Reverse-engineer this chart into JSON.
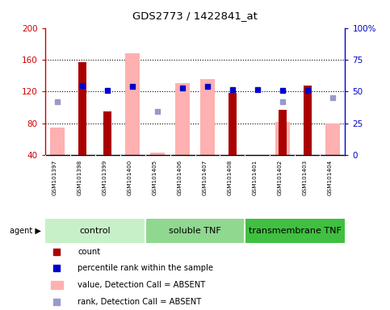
{
  "title": "GDS2773 / 1422841_at",
  "samples": [
    "GSM101397",
    "GSM101398",
    "GSM101399",
    "GSM101400",
    "GSM101405",
    "GSM101406",
    "GSM101407",
    "GSM101408",
    "GSM101401",
    "GSM101402",
    "GSM101403",
    "GSM101404"
  ],
  "group_defs": [
    {
      "start": 0,
      "end": 3,
      "label": "control",
      "color": "#c8f0c8"
    },
    {
      "start": 4,
      "end": 7,
      "label": "soluble TNF",
      "color": "#90d890"
    },
    {
      "start": 8,
      "end": 11,
      "label": "transmembrane TNF",
      "color": "#40c040"
    }
  ],
  "red_bars": [
    null,
    157,
    95,
    null,
    null,
    null,
    null,
    118,
    null,
    97,
    127,
    null
  ],
  "pink_bars": [
    75,
    null,
    null,
    168,
    43,
    130,
    136,
    null,
    null,
    82,
    null,
    80
  ],
  "blue_squares": [
    null,
    127,
    121,
    126,
    null,
    124,
    126,
    122,
    122,
    121,
    121,
    null
  ],
  "lightblue_squares": [
    107,
    null,
    null,
    null,
    95,
    null,
    null,
    null,
    null,
    107,
    null,
    112
  ],
  "ylim_left": [
    40,
    200
  ],
  "ylim_right": [
    0,
    100
  ],
  "yticks_left": [
    40,
    80,
    120,
    160,
    200
  ],
  "yticks_right": [
    0,
    25,
    50,
    75,
    100
  ],
  "ytick_labels_right": [
    "0",
    "25",
    "50",
    "75",
    "100%"
  ],
  "left_color": "#cc0000",
  "right_color": "#0000cc",
  "pink_color": "#ffb0b0",
  "red_color": "#aa0000",
  "blue_color": "#0000cc",
  "lightblue_color": "#9999cc",
  "bar_width": 0.6,
  "red_bar_width": 0.3,
  "xaxis_bg": "#c8c8c8",
  "plot_bg": "#ffffff"
}
